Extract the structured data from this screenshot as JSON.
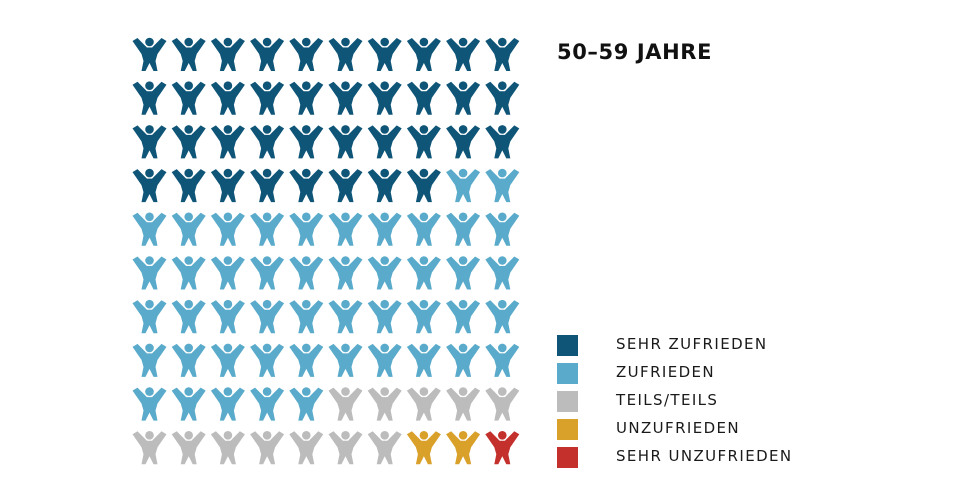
{
  "chart_data": {
    "type": "pictogram",
    "title": "50–59 JAHRE",
    "total_icons": 100,
    "legend_position": "bottom-right",
    "series": [
      {
        "name": "SEHR ZUFRIEDEN",
        "value": 38,
        "color": "#0e5578"
      },
      {
        "name": "ZUFRIEDEN",
        "value": 47,
        "color": "#5aabcb"
      },
      {
        "name": "TEILS/TEILS",
        "value": 12,
        "color": "#bcbcbc"
      },
      {
        "name": "UNZUFRIEDEN",
        "value": 2,
        "color": "#d9a02a"
      },
      {
        "name": "SEHR UNZUFRIEDEN",
        "value": 1,
        "color": "#c4302b"
      }
    ]
  }
}
